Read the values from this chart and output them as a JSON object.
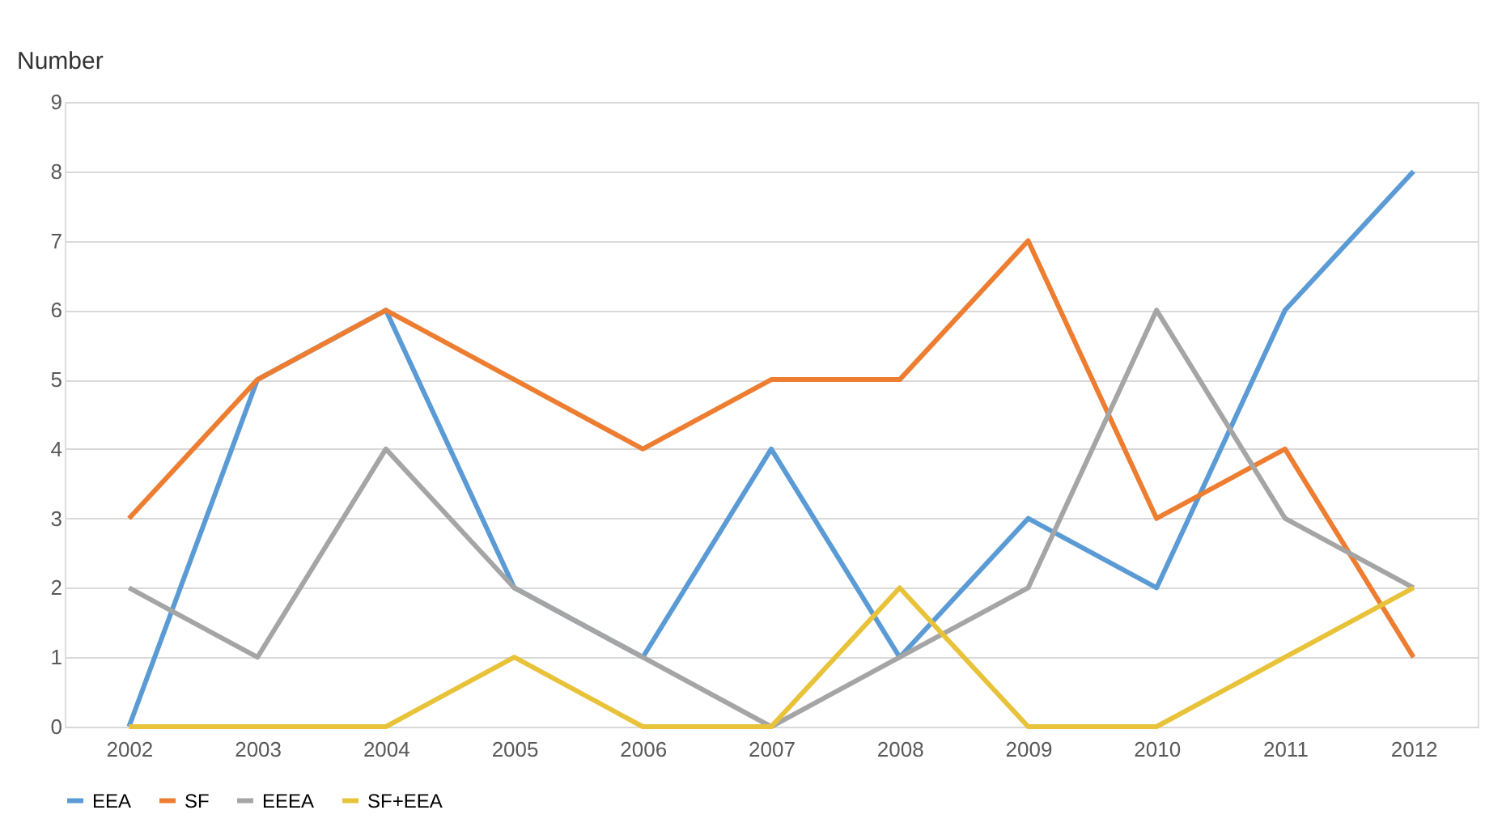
{
  "chart_data": {
    "type": "line",
    "ylabel": "Number",
    "categories": [
      "2002",
      "2003",
      "2004",
      "2005",
      "2006",
      "2007",
      "2008",
      "2009",
      "2010",
      "2011",
      "2012"
    ],
    "series": [
      {
        "name": "EEA",
        "color": "#5b9bd5",
        "values": [
          0,
          5,
          6,
          2,
          1,
          4,
          1,
          3,
          2,
          6,
          8
        ]
      },
      {
        "name": "SF",
        "color": "#ed7d31",
        "values": [
          3,
          5,
          6,
          5,
          4,
          5,
          5,
          7,
          3,
          4,
          1
        ]
      },
      {
        "name": "EEEA",
        "color": "#a5a5a5",
        "values": [
          2,
          1,
          4,
          2,
          1,
          0,
          1,
          2,
          6,
          3,
          2
        ]
      },
      {
        "name": "SF+EEA",
        "color": "#e8c33a",
        "values": [
          0,
          0,
          0,
          1,
          0,
          0,
          2,
          0,
          0,
          1,
          2
        ]
      }
    ],
    "ylim": [
      0,
      9
    ],
    "yticks": [
      0,
      1,
      2,
      3,
      4,
      5,
      6,
      7,
      8,
      9
    ],
    "grid": "y",
    "legend": "bottom",
    "marker": "none",
    "line_style": "solid"
  }
}
